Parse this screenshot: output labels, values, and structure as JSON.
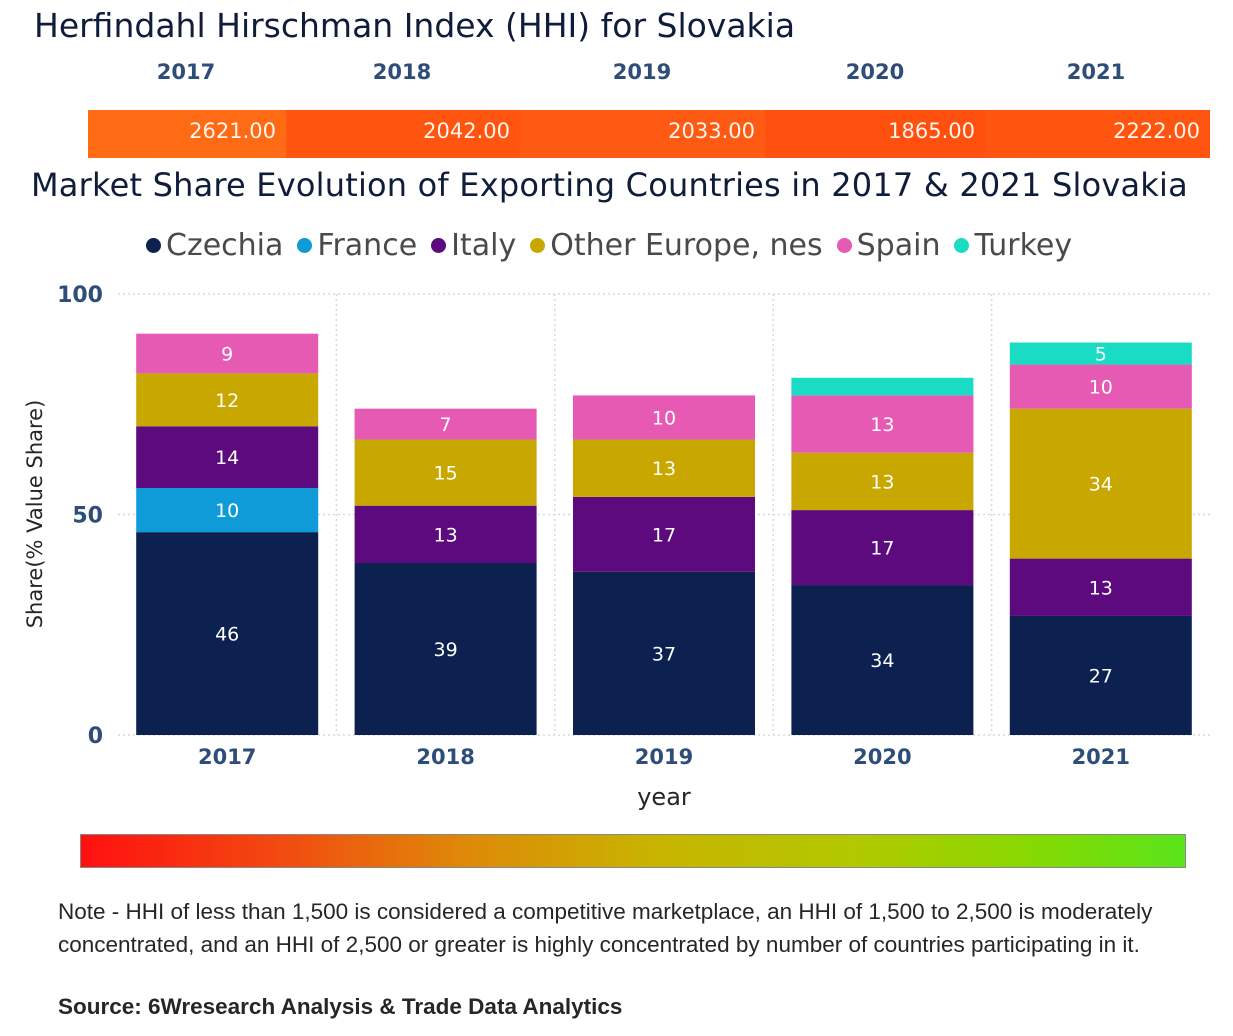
{
  "hhi": {
    "title": "Herfindahl Hirschman Index (HHI) for Slovakia",
    "years": [
      "2017",
      "2018",
      "2019",
      "2020",
      "2021"
    ],
    "values": [
      "2621.00",
      "2042.00",
      "2033.00",
      "1865.00",
      "2222.00"
    ],
    "colors": [
      "#ff6a14",
      "#ff5510",
      "#ff5a14",
      "#ff5010",
      "#ff5510"
    ]
  },
  "market_share": {
    "title": "Market Share Evolution of Exporting Countries in 2017 & 2021 Slovakia"
  },
  "chart_data": {
    "type": "bar",
    "stacked": true,
    "title": "Market Share Evolution of Exporting Countries in 2017 & 2021 Slovakia",
    "xlabel": "year",
    "ylabel": "Share(% Value Share)",
    "ylim": [
      0,
      100
    ],
    "yticks": [
      "0",
      "50",
      "100"
    ],
    "categories": [
      "2017",
      "2018",
      "2019",
      "2020",
      "2021"
    ],
    "series": [
      {
        "name": "Czechia",
        "color": "#0c2150",
        "values": [
          46,
          39,
          37,
          34,
          27
        ],
        "labels": [
          "46",
          "39",
          "37",
          "34",
          "27"
        ]
      },
      {
        "name": "France",
        "color": "#0f9ad8",
        "values": [
          10,
          0,
          0,
          0,
          0
        ],
        "labels": [
          "10",
          "",
          "",
          "",
          ""
        ]
      },
      {
        "name": "Italy",
        "color": "#5c0a7e",
        "values": [
          14,
          13,
          17,
          17,
          13
        ],
        "labels": [
          "14",
          "13",
          "17",
          "17",
          "13"
        ]
      },
      {
        "name": "Other Europe, nes",
        "color": "#c8a800",
        "values": [
          12,
          15,
          13,
          13,
          34
        ],
        "labels": [
          "12",
          "15",
          "13",
          "13",
          "34"
        ]
      },
      {
        "name": "Spain",
        "color": "#e65ab4",
        "values": [
          9,
          7,
          10,
          13,
          10
        ],
        "labels": [
          "9",
          "7",
          "10",
          "13",
          "10"
        ]
      },
      {
        "name": "Turkey",
        "color": "#1adcc4",
        "values": [
          0,
          0,
          0,
          4,
          5
        ],
        "labels": [
          "",
          "",
          "",
          "",
          "5"
        ]
      }
    ]
  },
  "gradient": {
    "colors": [
      "#ff1010",
      "#c8b400",
      "#5ae41a"
    ]
  },
  "note": "Note - HHI of less than 1,500 is considered a competitive marketplace, an HHI of 1,500 to 2,500 is moderately concentrated, and an HHI of 2,500 or greater is highly concentrated by number of countries participating in it.",
  "source": "Source: 6Wresearch Analysis & Trade Data Analytics"
}
